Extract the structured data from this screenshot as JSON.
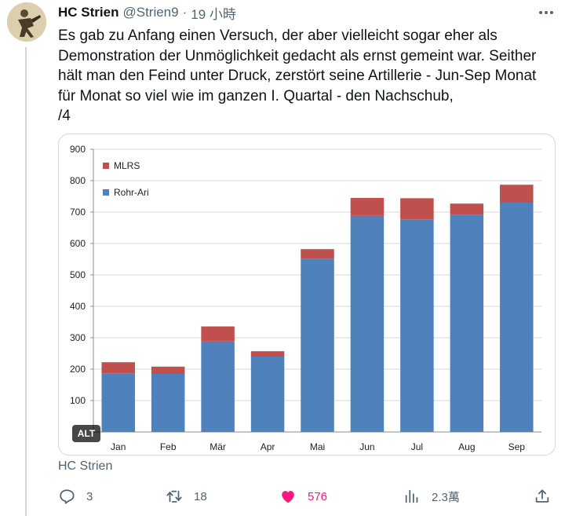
{
  "tweet": {
    "display_name": "HC Strien",
    "handle": "@Strien9",
    "separator": "·",
    "time": "19 小時",
    "text": "Es gab zu Anfang einen Versuch, der aber vielleicht sogar eher als Demonstration der Unmöglichkeit gedacht als ernst gemeint war. Seither hält man den Feind unter Druck, zerstört seine Artillerie - Jun-Sep Monat für Monat so viel wie im ganzen I. Quartal - den Nachschub,\n/4",
    "alt_badge": "ALT",
    "attribution": "HC Strien"
  },
  "actions": {
    "replies": "3",
    "retweets": "18",
    "likes": "576",
    "views": "2.3萬"
  },
  "colors": {
    "mlrs": "#c0504d",
    "rohr_ari": "#4f81bd",
    "like": "#f91880",
    "muted": "#536471"
  },
  "icons": [
    "more-icon",
    "reply-icon",
    "retweet-icon",
    "like-icon",
    "views-icon",
    "share-icon"
  ],
  "chart_data": {
    "type": "bar",
    "stacked": true,
    "categories": [
      "Jan",
      "Feb",
      "Mär",
      "Apr",
      "Mai",
      "Jun",
      "Jul",
      "Aug",
      "Sep"
    ],
    "series": [
      {
        "name": "Rohr-Ari",
        "values": [
          187,
          185,
          288,
          240,
          552,
          688,
          677,
          692,
          730
        ],
        "color": "#4f81bd"
      },
      {
        "name": "MLRS",
        "values": [
          35,
          23,
          48,
          17,
          30,
          57,
          67,
          35,
          57
        ],
        "color": "#c0504d"
      }
    ],
    "yticks": [
      "100",
      "200",
      "300",
      "400",
      "500",
      "600",
      "700",
      "800",
      "900"
    ],
    "ylim": [
      0,
      900
    ],
    "grid": true,
    "legend_position": "top-left",
    "title": "",
    "xlabel": "",
    "ylabel": ""
  }
}
